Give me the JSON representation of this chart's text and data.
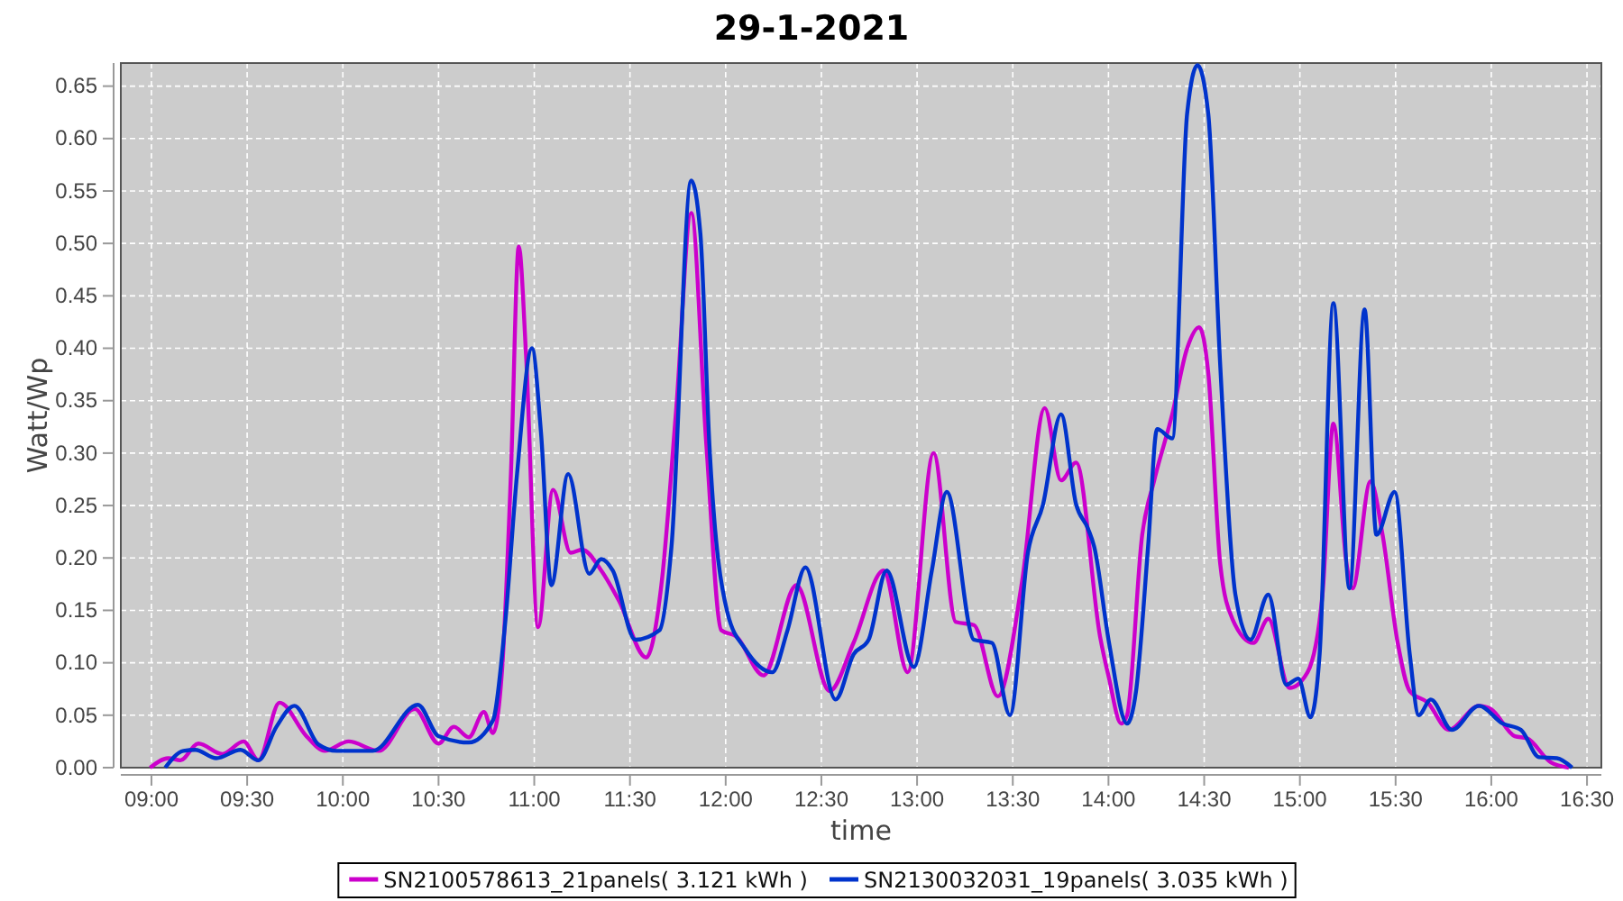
{
  "chart_data": {
    "type": "line",
    "title": "29-1-2021",
    "xlabel": "time",
    "ylabel": "Watt/Wp",
    "xlim": [
      8.84,
      16.575
    ],
    "ylim": [
      0,
      0.672
    ],
    "xticks": [
      {
        "value": 9,
        "label": "09:00"
      },
      {
        "value": 9.5,
        "label": "09:30"
      },
      {
        "value": 10,
        "label": "10:00"
      },
      {
        "value": 10.5,
        "label": "10:30"
      },
      {
        "value": 11,
        "label": "11:00"
      },
      {
        "value": 11.5,
        "label": "11:30"
      },
      {
        "value": 12,
        "label": "12:00"
      },
      {
        "value": 12.5,
        "label": "12:30"
      },
      {
        "value": 13,
        "label": "13:00"
      },
      {
        "value": 13.5,
        "label": "13:30"
      },
      {
        "value": 14,
        "label": "14:00"
      },
      {
        "value": 14.5,
        "label": "14:30"
      },
      {
        "value": 15,
        "label": "15:00"
      },
      {
        "value": 15.5,
        "label": "15:30"
      },
      {
        "value": 16,
        "label": "16:00"
      },
      {
        "value": 16.5,
        "label": "16:30"
      }
    ],
    "yticks": [
      {
        "value": 0,
        "label": "0.00"
      },
      {
        "value": 0.05,
        "label": "0.05"
      },
      {
        "value": 0.1,
        "label": "0.10"
      },
      {
        "value": 0.15,
        "label": "0.15"
      },
      {
        "value": 0.2,
        "label": "0.20"
      },
      {
        "value": 0.25,
        "label": "0.25"
      },
      {
        "value": 0.3,
        "label": "0.30"
      },
      {
        "value": 0.35,
        "label": "0.35"
      },
      {
        "value": 0.4,
        "label": "0.40"
      },
      {
        "value": 0.45,
        "label": "0.45"
      },
      {
        "value": 0.5,
        "label": "0.50"
      },
      {
        "value": 0.55,
        "label": "0.55"
      },
      {
        "value": 0.6,
        "label": "0.60"
      },
      {
        "value": 0.65,
        "label": "0.65"
      }
    ],
    "grid": true,
    "legend": "bottom",
    "series": [
      {
        "name": "SN2100578613_21panels( 3.121 kWh )",
        "color": "#cc00cc",
        "x": [
          8.993,
          9.088,
          9.151,
          9.245,
          9.371,
          9.481,
          9.559,
          9.669,
          9.81,
          9.905,
          10.03,
          10.187,
          10.376,
          10.5,
          10.58,
          10.658,
          10.737,
          10.784,
          10.831,
          10.878,
          10.919,
          10.957,
          11.02,
          11.098,
          11.19,
          11.25,
          11.35,
          11.443,
          11.585,
          11.664,
          11.742,
          11.82,
          11.899,
          11.977,
          12.056,
          12.197,
          12.37,
          12.543,
          12.668,
          12.825,
          12.951,
          13.086,
          13.202,
          13.297,
          13.422,
          13.548,
          13.667,
          13.752,
          13.831,
          13.956,
          14.003,
          14.066,
          14.097,
          14.176,
          14.239,
          14.333,
          14.411,
          14.474,
          14.521,
          14.584,
          14.647,
          14.757,
          14.835,
          14.946,
          15.04,
          15.118,
          15.175,
          15.244,
          15.275,
          15.369,
          15.432,
          15.511,
          15.574,
          15.668,
          15.778,
          15.935,
          15.998,
          16.123,
          16.186,
          16.311,
          16.405
        ],
        "values": [
          0,
          0.009,
          0.007,
          0.023,
          0.013,
          0.025,
          0.007,
          0.062,
          0.03,
          0.016,
          0.025,
          0.016,
          0.056,
          0.023,
          0.039,
          0.029,
          0.053,
          0.033,
          0.091,
          0.28,
          0.497,
          0.394,
          0.134,
          0.265,
          0.205,
          0.208,
          0.188,
          0.159,
          0.105,
          0.174,
          0.343,
          0.529,
          0.308,
          0.131,
          0.125,
          0.088,
          0.174,
          0.073,
          0.119,
          0.188,
          0.091,
          0.3,
          0.139,
          0.136,
          0.068,
          0.177,
          0.343,
          0.274,
          0.291,
          0.125,
          0.085,
          0.042,
          0.05,
          0.222,
          0.274,
          0.337,
          0.4,
          0.42,
          0.377,
          0.194,
          0.142,
          0.119,
          0.142,
          0.076,
          0.091,
          0.165,
          0.328,
          0.194,
          0.171,
          0.273,
          0.222,
          0.119,
          0.073,
          0.062,
          0.036,
          0.059,
          0.056,
          0.03,
          0.028,
          0.005,
          0
        ]
      },
      {
        "name": "SN2130032031_19panels( 3.035 kWh )",
        "color": "#0033cc",
        "x": [
          9.072,
          9.167,
          9.229,
          9.339,
          9.465,
          9.559,
          9.653,
          9.747,
          9.873,
          9.968,
          10.156,
          10.392,
          10.5,
          10.658,
          10.784,
          10.847,
          10.91,
          10.988,
          11.035,
          11.089,
          11.177,
          11.287,
          11.35,
          11.41,
          11.528,
          11.654,
          11.717,
          11.82,
          11.868,
          11.915,
          12.009,
          12.103,
          12.244,
          12.323,
          12.417,
          12.574,
          12.668,
          12.747,
          12.841,
          12.983,
          13.077,
          13.155,
          13.297,
          13.391,
          13.485,
          13.579,
          13.658,
          13.752,
          13.831,
          13.893,
          13.925,
          14.003,
          14.097,
          14.144,
          14.207,
          14.254,
          14.333,
          14.411,
          14.465,
          14.521,
          14.584,
          14.663,
          14.741,
          14.835,
          14.929,
          14.992,
          15.055,
          15.103,
          15.175,
          15.259,
          15.338,
          15.4,
          15.495,
          15.574,
          15.621,
          15.684,
          15.794,
          15.935,
          16.06,
          16.155,
          16.249,
          16.343,
          16.422
        ],
        "values": [
          0,
          0.016,
          0.017,
          0.009,
          0.017,
          0.007,
          0.039,
          0.059,
          0.022,
          0.016,
          0.016,
          0.06,
          0.03,
          0.024,
          0.045,
          0.136,
          0.28,
          0.4,
          0.32,
          0.174,
          0.28,
          0.185,
          0.199,
          0.188,
          0.122,
          0.131,
          0.211,
          0.56,
          0.509,
          0.308,
          0.148,
          0.113,
          0.091,
          0.131,
          0.191,
          0.065,
          0.108,
          0.122,
          0.188,
          0.096,
          0.188,
          0.263,
          0.122,
          0.119,
          0.05,
          0.205,
          0.251,
          0.337,
          0.251,
          0.228,
          0.211,
          0.119,
          0.042,
          0.073,
          0.211,
          0.323,
          0.314,
          0.624,
          0.67,
          0.624,
          0.383,
          0.165,
          0.122,
          0.165,
          0.079,
          0.085,
          0.048,
          0.108,
          0.443,
          0.171,
          0.437,
          0.222,
          0.263,
          0.108,
          0.05,
          0.065,
          0.036,
          0.059,
          0.042,
          0.036,
          0.01,
          0.009,
          0
        ]
      }
    ]
  }
}
